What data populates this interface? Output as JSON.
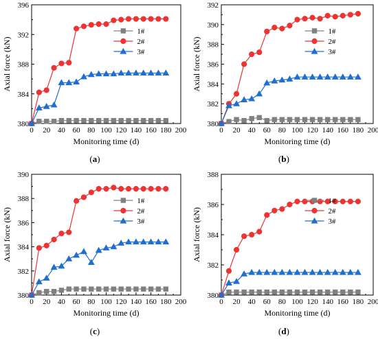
{
  "chart_data": [
    {
      "type": "line",
      "caption": "(a)",
      "xlabel": "Monitoring time (d)",
      "ylabel": "Axial force (kN)",
      "xlim": [
        0,
        200
      ],
      "ylim": [
        380,
        396
      ],
      "xticks": [
        0,
        20,
        40,
        60,
        80,
        100,
        120,
        140,
        160,
        180,
        200
      ],
      "yticks": [
        380,
        384,
        388,
        392,
        396
      ],
      "legend_position": "right",
      "series": [
        {
          "name": "1#",
          "color": "#808080",
          "marker": "square",
          "x": [
            0,
            10,
            20,
            30,
            40,
            50,
            60,
            70,
            80,
            90,
            100,
            110,
            120,
            130,
            140,
            150,
            160,
            170,
            180
          ],
          "y": [
            380,
            380.3,
            380.3,
            380.3,
            380.4,
            380.4,
            380.4,
            380.4,
            380.4,
            380.4,
            380.4,
            380.4,
            380.4,
            380.4,
            380.4,
            380.4,
            380.4,
            380.4,
            380.4
          ]
        },
        {
          "name": "2#",
          "color": "#ee3333",
          "marker": "circle",
          "x": [
            0,
            10,
            20,
            30,
            40,
            50,
            60,
            70,
            80,
            90,
            100,
            110,
            120,
            130,
            140,
            150,
            160,
            170,
            180
          ],
          "y": [
            380,
            384.2,
            384.5,
            387.5,
            388.1,
            388.2,
            392.8,
            393.1,
            393.3,
            393.4,
            393.4,
            393.9,
            394,
            394.1,
            394.1,
            394.1,
            394.1,
            394.1,
            394.1
          ]
        },
        {
          "name": "3#",
          "color": "#1f6fd1",
          "marker": "triangle",
          "x": [
            0,
            10,
            20,
            30,
            40,
            50,
            60,
            70,
            80,
            90,
            100,
            110,
            120,
            130,
            140,
            150,
            160,
            170,
            180
          ],
          "y": [
            380,
            382.1,
            382.3,
            382.5,
            385.5,
            385.5,
            385.6,
            386.3,
            386.6,
            386.7,
            386.7,
            386.7,
            386.8,
            386.8,
            386.8,
            386.8,
            386.8,
            386.8,
            386.8
          ]
        }
      ]
    },
    {
      "type": "line",
      "caption": "(b)",
      "xlabel": "Monitoring time (d)",
      "ylabel": "Axial force (kN)",
      "xlim": [
        0,
        200
      ],
      "ylim": [
        380,
        392
      ],
      "xticks": [
        0,
        20,
        40,
        60,
        80,
        100,
        120,
        140,
        160,
        180,
        200
      ],
      "yticks": [
        380,
        382,
        384,
        386,
        388,
        390,
        392
      ],
      "legend_position": "right",
      "series": [
        {
          "name": "1#",
          "color": "#808080",
          "marker": "square",
          "x": [
            0,
            10,
            20,
            30,
            40,
            50,
            60,
            70,
            80,
            90,
            100,
            110,
            120,
            130,
            140,
            150,
            160,
            170,
            180
          ],
          "y": [
            380,
            380.2,
            380.4,
            380.3,
            380.5,
            380.6,
            380.3,
            380.4,
            380.4,
            380.4,
            380.4,
            380.4,
            380.4,
            380.4,
            380.4,
            380.4,
            380.4,
            380.4,
            380.4
          ]
        },
        {
          "name": "2#",
          "color": "#ee3333",
          "marker": "circle",
          "x": [
            0,
            10,
            20,
            30,
            40,
            50,
            60,
            70,
            80,
            90,
            100,
            110,
            120,
            130,
            140,
            150,
            160,
            170,
            180
          ],
          "y": [
            380,
            382,
            383,
            386,
            387,
            387.2,
            389.3,
            389.7,
            389.6,
            389.9,
            390.5,
            390.6,
            390.7,
            390.6,
            390.9,
            390.8,
            390.9,
            391,
            391.1
          ]
        },
        {
          "name": "3#",
          "color": "#1f6fd1",
          "marker": "triangle",
          "x": [
            0,
            10,
            20,
            30,
            40,
            50,
            60,
            70,
            80,
            90,
            100,
            110,
            120,
            130,
            140,
            150,
            160,
            170,
            180
          ],
          "y": [
            380,
            381.8,
            382,
            382.4,
            382.5,
            383,
            384.1,
            384.3,
            384.4,
            384.5,
            384.7,
            384.7,
            384.7,
            384.7,
            384.7,
            384.7,
            384.7,
            384.7,
            384.7
          ]
        }
      ]
    },
    {
      "type": "line",
      "caption": "(c)",
      "xlabel": "Monitoring time (d)",
      "ylabel": "Axial force (kN)",
      "xlim": [
        0,
        200
      ],
      "ylim": [
        380,
        390
      ],
      "xticks": [
        0,
        20,
        40,
        60,
        80,
        100,
        120,
        140,
        160,
        180,
        200
      ],
      "yticks": [
        380,
        382,
        384,
        386,
        388,
        390
      ],
      "legend_position": "right",
      "series": [
        {
          "name": "1#",
          "color": "#808080",
          "marker": "square",
          "x": [
            0,
            10,
            20,
            30,
            40,
            50,
            60,
            70,
            80,
            90,
            100,
            110,
            120,
            130,
            140,
            150,
            160,
            170,
            180
          ],
          "y": [
            380,
            380.2,
            380.3,
            380.3,
            380.4,
            380.5,
            380.5,
            380.5,
            380.5,
            380.5,
            380.5,
            380.5,
            380.5,
            380.5,
            380.5,
            380.5,
            380.5,
            380.5,
            380.5
          ]
        },
        {
          "name": "2#",
          "color": "#ee3333",
          "marker": "circle",
          "x": [
            0,
            10,
            20,
            30,
            40,
            50,
            60,
            70,
            80,
            90,
            100,
            110,
            120,
            130,
            140,
            150,
            160,
            170,
            180
          ],
          "y": [
            380,
            383.9,
            384.1,
            384.6,
            385.1,
            385.2,
            387.8,
            388.1,
            388.5,
            388.8,
            388.8,
            388.9,
            388.8,
            388.8,
            388.8,
            388.8,
            388.8,
            388.8,
            388.8
          ]
        },
        {
          "name": "3#",
          "color": "#1f6fd1",
          "marker": "triangle",
          "x": [
            0,
            10,
            20,
            30,
            40,
            50,
            60,
            70,
            80,
            90,
            100,
            110,
            120,
            130,
            140,
            150,
            160,
            170,
            180
          ],
          "y": [
            380,
            381.1,
            381.4,
            382.3,
            382.4,
            383,
            383.3,
            383.6,
            382.7,
            383.7,
            383.9,
            384,
            384.3,
            384.4,
            384.4,
            384.4,
            384.4,
            384.4,
            384.4
          ]
        }
      ]
    },
    {
      "type": "line",
      "caption": "(d)",
      "xlabel": "Monitoring time (d)",
      "ylabel": "Axial force (kN)",
      "xlim": [
        0,
        200
      ],
      "ylim": [
        380,
        388
      ],
      "xticks": [
        0,
        20,
        40,
        60,
        80,
        100,
        120,
        140,
        160,
        180,
        200
      ],
      "yticks": [
        380,
        382,
        384,
        386,
        388
      ],
      "legend_position": "right",
      "series": [
        {
          "name": "1#",
          "color": "#808080",
          "marker": "square",
          "x": [
            0,
            10,
            20,
            30,
            40,
            50,
            60,
            70,
            80,
            90,
            100,
            110,
            120,
            130,
            140,
            150,
            160,
            170,
            180
          ],
          "y": [
            380,
            380.2,
            380.2,
            380.2,
            380.2,
            380.2,
            380.2,
            380.2,
            380.2,
            380.2,
            380.2,
            380.2,
            380.2,
            380.2,
            380.2,
            380.2,
            380.2,
            380.2,
            380.2
          ]
        },
        {
          "name": "2#",
          "color": "#ee3333",
          "marker": "circle",
          "x": [
            0,
            10,
            20,
            30,
            40,
            50,
            60,
            70,
            80,
            90,
            100,
            110,
            120,
            130,
            140,
            150,
            160,
            170,
            180
          ],
          "y": [
            380,
            381.6,
            383,
            383.9,
            384,
            384.2,
            385.3,
            385.6,
            385.7,
            386,
            386.2,
            386.2,
            386.2,
            386.2,
            386.2,
            386.2,
            386.2,
            386.2,
            386.2
          ]
        },
        {
          "name": "3#",
          "color": "#1f6fd1",
          "marker": "triangle",
          "x": [
            0,
            10,
            20,
            30,
            40,
            50,
            60,
            70,
            80,
            90,
            100,
            110,
            120,
            130,
            140,
            150,
            160,
            170,
            180
          ],
          "y": [
            380,
            380.8,
            380.9,
            381.4,
            381.5,
            381.5,
            381.5,
            381.5,
            381.5,
            381.5,
            381.5,
            381.5,
            381.5,
            381.5,
            381.5,
            381.5,
            381.5,
            381.5,
            381.5
          ]
        }
      ]
    }
  ]
}
